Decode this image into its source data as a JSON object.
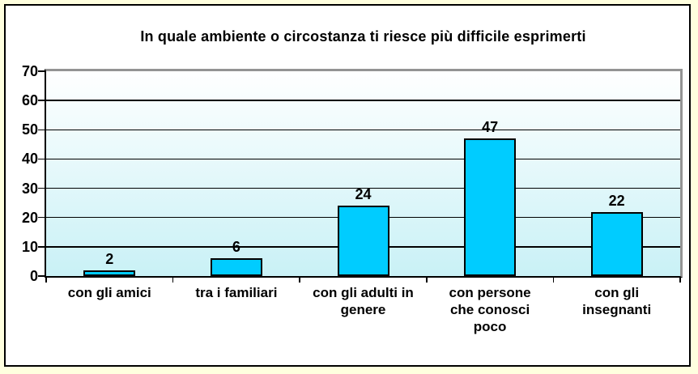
{
  "frame": {
    "outer_background": "#FFFFDF",
    "border_color": "#000000",
    "inner_background": "#FFFFFF"
  },
  "chart_data": {
    "type": "bar",
    "title": "In quale ambiente o circostanza ti riesce più difficile esprimerti",
    "categories": [
      "con gli amici",
      "tra i familiari",
      "con gli adulti in genere",
      "con persone che conosci poco",
      "con gli insegnanti"
    ],
    "category_label_lines": [
      [
        "con gli amici"
      ],
      [
        "tra i familiari"
      ],
      [
        "con gli adulti in",
        "genere"
      ],
      [
        "con persone",
        "che conosci",
        "poco"
      ],
      [
        "con gli",
        "insegnanti"
      ]
    ],
    "values": [
      2,
      6,
      24,
      47,
      22
    ],
    "data_labels": [
      "2",
      "6",
      "24",
      "47",
      "22"
    ],
    "xlabel": "",
    "ylabel": "",
    "ylim": [
      0,
      70
    ],
    "y_ticks": [
      70,
      60,
      50,
      40,
      30,
      20,
      10,
      0
    ],
    "grid": true,
    "legend": false,
    "colors": {
      "bar_fill": "#00CCFF",
      "bar_border": "#000000",
      "plot_bg_top": "#FFFFFF",
      "plot_bg_bottom": "#C9F1F6",
      "gridline": "#000000",
      "plot_border_gray": "#949494",
      "axis_line": "#000000",
      "text": "#000000"
    }
  }
}
